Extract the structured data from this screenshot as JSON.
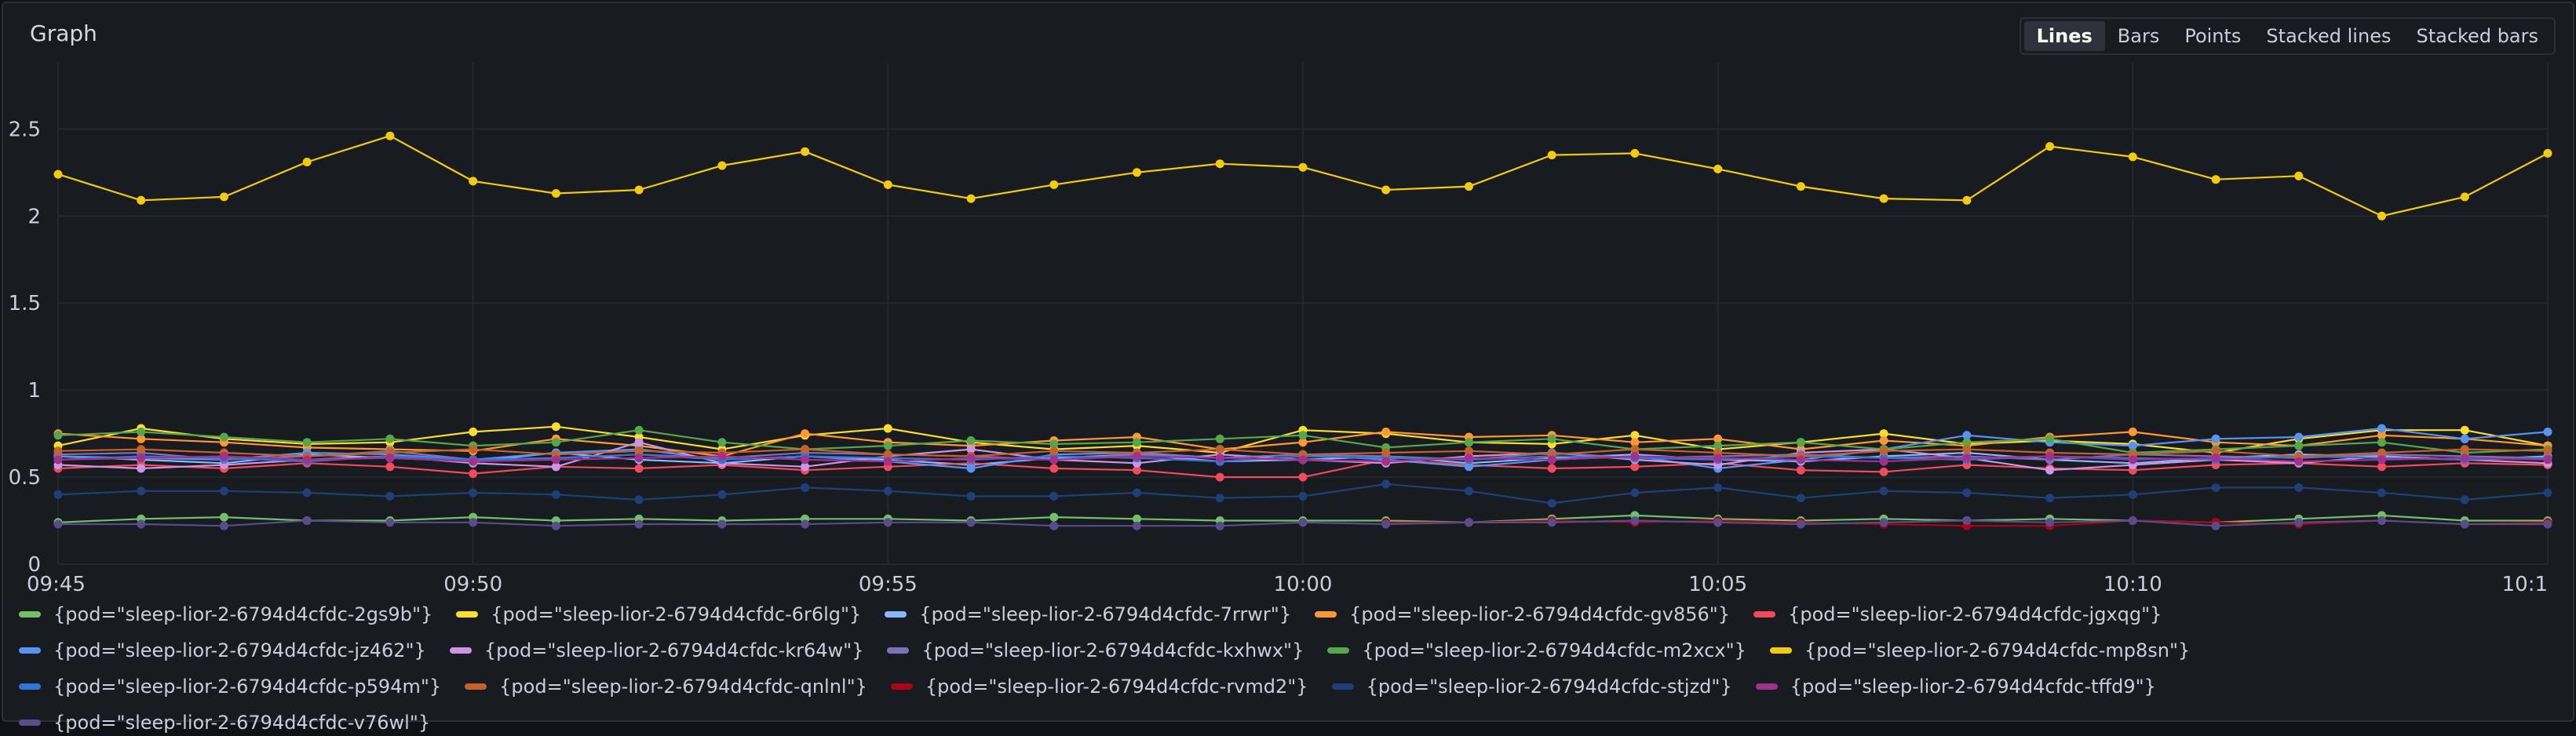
{
  "panel": {
    "title": "Graph",
    "modes": [
      "Lines",
      "Bars",
      "Points",
      "Stacked lines",
      "Stacked bars"
    ],
    "active_mode": "Lines"
  },
  "chart_data": {
    "type": "line",
    "title": "Graph",
    "xlabel": "",
    "ylabel": "",
    "x": [
      "09:45",
      "09:46",
      "09:47",
      "09:48",
      "09:49",
      "09:50",
      "09:51",
      "09:52",
      "09:53",
      "09:54",
      "09:55",
      "09:56",
      "09:57",
      "09:58",
      "09:59",
      "10:00",
      "10:01",
      "10:02",
      "10:03",
      "10:04",
      "10:05",
      "10:06",
      "10:07",
      "10:08",
      "10:09",
      "10:10",
      "10:11",
      "10:12",
      "10:13",
      "10:14",
      "10:15"
    ],
    "x_tick_labels": [
      "09:45",
      "09:50",
      "09:55",
      "10:00",
      "10:05",
      "10:10",
      "10:1"
    ],
    "y_tick_labels": [
      "0",
      "0.5",
      "1",
      "1.5",
      "2",
      "2.5"
    ],
    "ylim": [
      0,
      2.7
    ],
    "grid": true,
    "legend_position": "bottom",
    "series": [
      {
        "name": "{pod=\"sleep-lior-2-6794d4cfdc-2gs9b\"}",
        "color": "#73bf69",
        "values": [
          0.24,
          0.26,
          0.27,
          0.25,
          0.25,
          0.27,
          0.25,
          0.26,
          0.25,
          0.26,
          0.26,
          0.25,
          0.27,
          0.26,
          0.25,
          0.25,
          0.25,
          0.24,
          0.26,
          0.28,
          0.26,
          0.25,
          0.26,
          0.25,
          0.26,
          0.25,
          0.24,
          0.26,
          0.28,
          0.25,
          0.25
        ]
      },
      {
        "name": "{pod=\"sleep-lior-2-6794d4cfdc-6r6lg\"}",
        "color": "#fade2a",
        "values": [
          0.68,
          0.78,
          0.72,
          0.69,
          0.7,
          0.76,
          0.79,
          0.73,
          0.66,
          0.74,
          0.78,
          0.7,
          0.66,
          0.68,
          0.64,
          0.77,
          0.75,
          0.7,
          0.69,
          0.74,
          0.66,
          0.7,
          0.75,
          0.69,
          0.71,
          0.69,
          0.64,
          0.72,
          0.77,
          0.77,
          0.68
        ]
      },
      {
        "name": "{pod=\"sleep-lior-2-6794d4cfdc-7rrwr\"}",
        "color": "#8ab8ff",
        "values": [
          0.62,
          0.6,
          0.58,
          0.63,
          0.61,
          0.59,
          0.64,
          0.6,
          0.58,
          0.62,
          0.6,
          0.57,
          0.61,
          0.63,
          0.59,
          0.6,
          0.62,
          0.58,
          0.61,
          0.63,
          0.6,
          0.59,
          0.62,
          0.64,
          0.6,
          0.58,
          0.61,
          0.63,
          0.62,
          0.6,
          0.62
        ]
      },
      {
        "name": "{pod=\"sleep-lior-2-6794d4cfdc-gv856\"}",
        "color": "#ff9830",
        "values": [
          0.75,
          0.72,
          0.7,
          0.67,
          0.66,
          0.65,
          0.72,
          0.68,
          0.62,
          0.75,
          0.7,
          0.68,
          0.71,
          0.73,
          0.66,
          0.7,
          0.76,
          0.73,
          0.74,
          0.7,
          0.72,
          0.66,
          0.71,
          0.68,
          0.73,
          0.76,
          0.7,
          0.68,
          0.74,
          0.72,
          0.68
        ]
      },
      {
        "name": "{pod=\"sleep-lior-2-6794d4cfdc-jgxqg\"}",
        "color": "#f2495c",
        "values": [
          0.55,
          0.57,
          0.55,
          0.58,
          0.56,
          0.52,
          0.56,
          0.55,
          0.57,
          0.54,
          0.56,
          0.58,
          0.55,
          0.54,
          0.5,
          0.5,
          0.6,
          0.57,
          0.55,
          0.56,
          0.58,
          0.54,
          0.53,
          0.57,
          0.55,
          0.54,
          0.57,
          0.58,
          0.56,
          0.58,
          0.57
        ]
      },
      {
        "name": "{pod=\"sleep-lior-2-6794d4cfdc-jz462\"}",
        "color": "#5794f2",
        "values": [
          0.62,
          0.61,
          0.6,
          0.64,
          0.63,
          0.6,
          0.64,
          0.66,
          0.6,
          0.62,
          0.59,
          0.55,
          0.63,
          0.64,
          0.61,
          0.63,
          0.6,
          0.56,
          0.6,
          0.62,
          0.55,
          0.6,
          0.66,
          0.74,
          0.7,
          0.68,
          0.72,
          0.73,
          0.78,
          0.72,
          0.76
        ]
      },
      {
        "name": "{pod=\"sleep-lior-2-6794d4cfdc-kr64w\"}",
        "color": "#ca95e5",
        "values": [
          0.57,
          0.55,
          0.57,
          0.6,
          0.62,
          0.58,
          0.56,
          0.7,
          0.58,
          0.56,
          0.62,
          0.66,
          0.6,
          0.58,
          0.63,
          0.6,
          0.58,
          0.62,
          0.64,
          0.6,
          0.57,
          0.64,
          0.66,
          0.61,
          0.54,
          0.57,
          0.6,
          0.58,
          0.62,
          0.6,
          0.58
        ]
      },
      {
        "name": "{pod=\"sleep-lior-2-6794d4cfdc-kxhwx\"}",
        "color": "#7f71b5",
        "values": [
          0.63,
          0.64,
          0.6,
          0.62,
          0.65,
          0.6,
          0.61,
          0.63,
          0.61,
          0.64,
          0.63,
          0.62,
          0.6,
          0.63,
          0.61,
          0.63,
          0.62,
          0.6,
          0.64,
          0.61,
          0.62,
          0.63,
          0.61,
          0.62,
          0.6,
          0.63,
          0.62,
          0.61,
          0.63,
          0.62,
          0.61
        ]
      },
      {
        "name": "{pod=\"sleep-lior-2-6794d4cfdc-m2xcx\"}",
        "color": "#56a64b",
        "values": [
          0.74,
          0.76,
          0.73,
          0.7,
          0.72,
          0.68,
          0.7,
          0.77,
          0.7,
          0.66,
          0.68,
          0.71,
          0.69,
          0.7,
          0.72,
          0.74,
          0.67,
          0.7,
          0.72,
          0.66,
          0.68,
          0.7,
          0.66,
          0.7,
          0.72,
          0.64,
          0.66,
          0.68,
          0.7,
          0.64,
          0.66
        ]
      },
      {
        "name": "{pod=\"sleep-lior-2-6794d4cfdc-mp8sn\"}",
        "color": "#f2cc0c",
        "values": [
          2.24,
          2.09,
          2.11,
          2.31,
          2.46,
          2.2,
          2.13,
          2.15,
          2.29,
          2.37,
          2.18,
          2.1,
          2.18,
          2.25,
          2.3,
          2.28,
          2.15,
          2.17,
          2.35,
          2.36,
          2.27,
          2.17,
          2.1,
          2.09,
          2.4,
          2.34,
          2.21,
          2.23,
          2.0,
          2.11,
          2.36
        ]
      },
      {
        "name": "{pod=\"sleep-lior-2-6794d4cfdc-p594m\"}",
        "color": "#3274d9",
        "values": [
          0.6,
          0.62,
          0.61,
          0.59,
          0.62,
          0.6,
          0.61,
          0.63,
          0.6,
          0.62,
          0.61,
          0.6,
          0.62,
          0.61,
          0.59,
          0.62,
          0.61,
          0.6,
          0.62,
          0.61,
          0.6,
          0.62,
          0.61,
          0.6,
          0.62,
          0.61,
          0.6,
          0.62,
          0.61,
          0.6,
          0.61
        ]
      },
      {
        "name": "{pod=\"sleep-lior-2-6794d4cfdc-qnlnl\"}",
        "color": "#c4622b",
        "values": [
          0.65,
          0.66,
          0.64,
          0.62,
          0.64,
          0.66,
          0.63,
          0.65,
          0.64,
          0.66,
          0.63,
          0.62,
          0.65,
          0.64,
          0.66,
          0.63,
          0.64,
          0.65,
          0.63,
          0.66,
          0.64,
          0.62,
          0.65,
          0.66,
          0.64,
          0.63,
          0.65,
          0.62,
          0.64,
          0.66,
          0.65
        ]
      },
      {
        "name": "{pod=\"sleep-lior-2-6794d4cfdc-rvmd2\"}",
        "color": "#ad0317",
        "values": [
          null,
          null,
          null,
          null,
          null,
          null,
          null,
          null,
          null,
          null,
          null,
          null,
          null,
          null,
          null,
          null,
          0.24,
          0.24,
          0.25,
          0.24,
          0.25,
          0.24,
          0.23,
          0.22,
          0.22,
          0.25,
          0.24,
          0.23,
          0.25,
          0.23,
          0.24
        ]
      },
      {
        "name": "{pod=\"sleep-lior-2-6794d4cfdc-stjzd\"}",
        "color": "#1f3f7a",
        "values": [
          0.4,
          0.42,
          0.42,
          0.41,
          0.39,
          0.41,
          0.4,
          0.37,
          0.4,
          0.44,
          0.42,
          0.39,
          0.39,
          0.41,
          0.38,
          0.39,
          0.46,
          0.42,
          0.35,
          0.41,
          0.44,
          0.38,
          0.42,
          0.41,
          0.38,
          0.4,
          0.44,
          0.44,
          0.41,
          0.37,
          0.41
        ]
      },
      {
        "name": "{pod=\"sleep-lior-2-6794d4cfdc-tffd9\"}",
        "color": "#a3318c",
        "values": [
          0.6,
          0.61,
          0.62,
          0.6,
          0.61,
          0.59,
          0.6,
          0.61,
          0.62,
          0.6,
          0.59,
          0.61,
          0.6,
          0.62,
          0.61,
          0.6,
          0.59,
          0.61,
          0.6,
          0.62,
          0.61,
          0.6,
          0.59,
          0.61,
          0.62,
          0.6,
          0.61,
          0.59,
          0.6,
          0.61,
          0.6
        ]
      },
      {
        "name": "{pod=\"sleep-lior-2-6794d4cfdc-v76wl\"}",
        "color": "#5a4b8a",
        "values": [
          0.23,
          0.23,
          0.22,
          0.25,
          0.24,
          0.24,
          0.22,
          0.23,
          0.23,
          0.23,
          0.24,
          0.24,
          0.22,
          0.22,
          0.22,
          0.24,
          0.23,
          0.24,
          0.24,
          0.25,
          0.24,
          0.23,
          0.24,
          0.25,
          0.24,
          0.25,
          0.22,
          0.24,
          0.25,
          0.23,
          0.23
        ]
      }
    ]
  }
}
